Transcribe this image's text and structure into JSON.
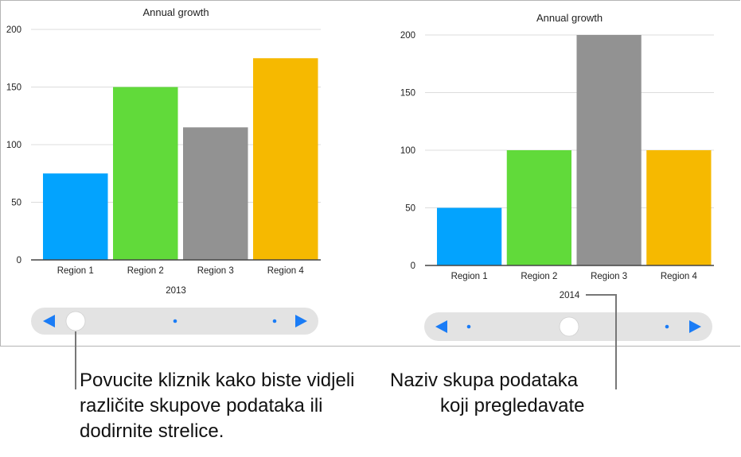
{
  "chart_data": [
    {
      "type": "bar",
      "title": "Annual growth",
      "xlabel": "2013",
      "categories": [
        "Region 1",
        "Region 2",
        "Region 3",
        "Region 4"
      ],
      "values": [
        75,
        150,
        115,
        175
      ],
      "colors": [
        "#03a3fe",
        "#61da3a",
        "#929292",
        "#f6b900"
      ],
      "yticks": [
        0,
        50,
        100,
        150,
        200
      ],
      "ylim": [
        0,
        200
      ],
      "grid": true,
      "slider": {
        "position": 0,
        "steps": 3,
        "controls": [
          "previous-arrow",
          "next-arrow"
        ]
      }
    },
    {
      "type": "bar",
      "title": "Annual growth",
      "xlabel": "2014",
      "categories": [
        "Region 1",
        "Region 2",
        "Region 3",
        "Region 4"
      ],
      "values": [
        50,
        100,
        200,
        100
      ],
      "colors": [
        "#03a3fe",
        "#61da3a",
        "#929292",
        "#f6b900"
      ],
      "yticks": [
        0,
        50,
        100,
        150,
        200
      ],
      "ylim": [
        0,
        200
      ],
      "grid": true,
      "slider": {
        "position": 1,
        "steps": 3,
        "controls": [
          "previous-arrow",
          "next-arrow"
        ]
      }
    }
  ],
  "callouts": {
    "left": [
      "Povucite kliznik kako biste vidjeli",
      "različite skupove podataka ili",
      "dodirnite strelice."
    ],
    "right": [
      "Naziv skupa podataka",
      "koji pregledavate"
    ]
  },
  "accent": "#1a7cf6"
}
